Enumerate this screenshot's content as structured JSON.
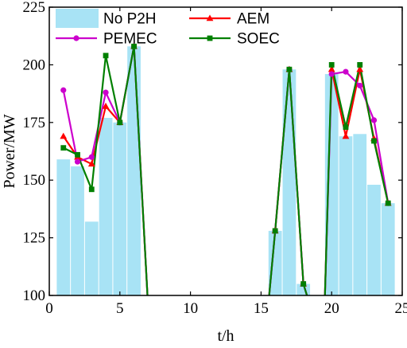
{
  "chart_data": {
    "type": "bar+line",
    "xlabel": "t/h",
    "ylabel": "Power/MW",
    "xlim": [
      0,
      25
    ],
    "ylim": [
      100,
      225
    ],
    "xticks": [
      0,
      5,
      10,
      15,
      20,
      25
    ],
    "yticks": [
      100,
      125,
      150,
      175,
      200,
      225
    ],
    "grid": false,
    "legend": "top-left",
    "bars": {
      "name": "No P2H",
      "color": "#a8e3f5",
      "x": [
        1,
        2,
        3,
        4,
        5,
        6,
        7,
        16,
        17,
        18,
        19,
        20,
        21,
        22,
        23,
        24
      ],
      "values": [
        159,
        156,
        132,
        177,
        175,
        208,
        95,
        128,
        198,
        105,
        95,
        196,
        169,
        170,
        148,
        140
      ]
    },
    "series": [
      {
        "name": "AEM",
        "color": "#ff0000",
        "marker": "triangle",
        "segments": [
          {
            "x": [
              1,
              2,
              3,
              4,
              5,
              6,
              7
            ],
            "y": [
              169,
              160,
              157,
              182,
              175,
              208,
              95
            ]
          },
          {
            "x": [
              15.5,
              16,
              17,
              18,
              18.5
            ],
            "y": [
              95,
              128,
              198,
              105,
              95
            ]
          },
          {
            "x": [
              19.5,
              20,
              21,
              22,
              23,
              24
            ],
            "y": [
              95,
              198,
              169,
              198,
              168,
              140
            ]
          }
        ]
      },
      {
        "name": "PEMEC",
        "color": "#cc00cc",
        "marker": "circle",
        "segments": [
          {
            "x": [
              1,
              2,
              3,
              4,
              5,
              6,
              7
            ],
            "y": [
              189,
              158,
              160,
              188,
              175,
              208,
              95
            ]
          },
          {
            "x": [
              15.5,
              16,
              17,
              18,
              18.5
            ],
            "y": [
              95,
              128,
              198,
              105,
              95
            ]
          },
          {
            "x": [
              19.5,
              20,
              21,
              22,
              23,
              24
            ],
            "y": [
              95,
              196,
              197,
              191,
              176,
              140
            ]
          }
        ]
      },
      {
        "name": "SOEC",
        "color": "#008000",
        "marker": "square",
        "segments": [
          {
            "x": [
              1,
              2,
              3,
              4,
              5,
              6,
              7
            ],
            "y": [
              164,
              161,
              146,
              204,
              175,
              208,
              95
            ]
          },
          {
            "x": [
              15.5,
              16,
              17,
              18,
              18.5
            ],
            "y": [
              95,
              128,
              198,
              105,
              95
            ]
          },
          {
            "x": [
              19.5,
              20,
              21,
              22,
              23,
              24
            ],
            "y": [
              95,
              200,
              173,
              200,
              167,
              140
            ]
          }
        ]
      }
    ]
  }
}
